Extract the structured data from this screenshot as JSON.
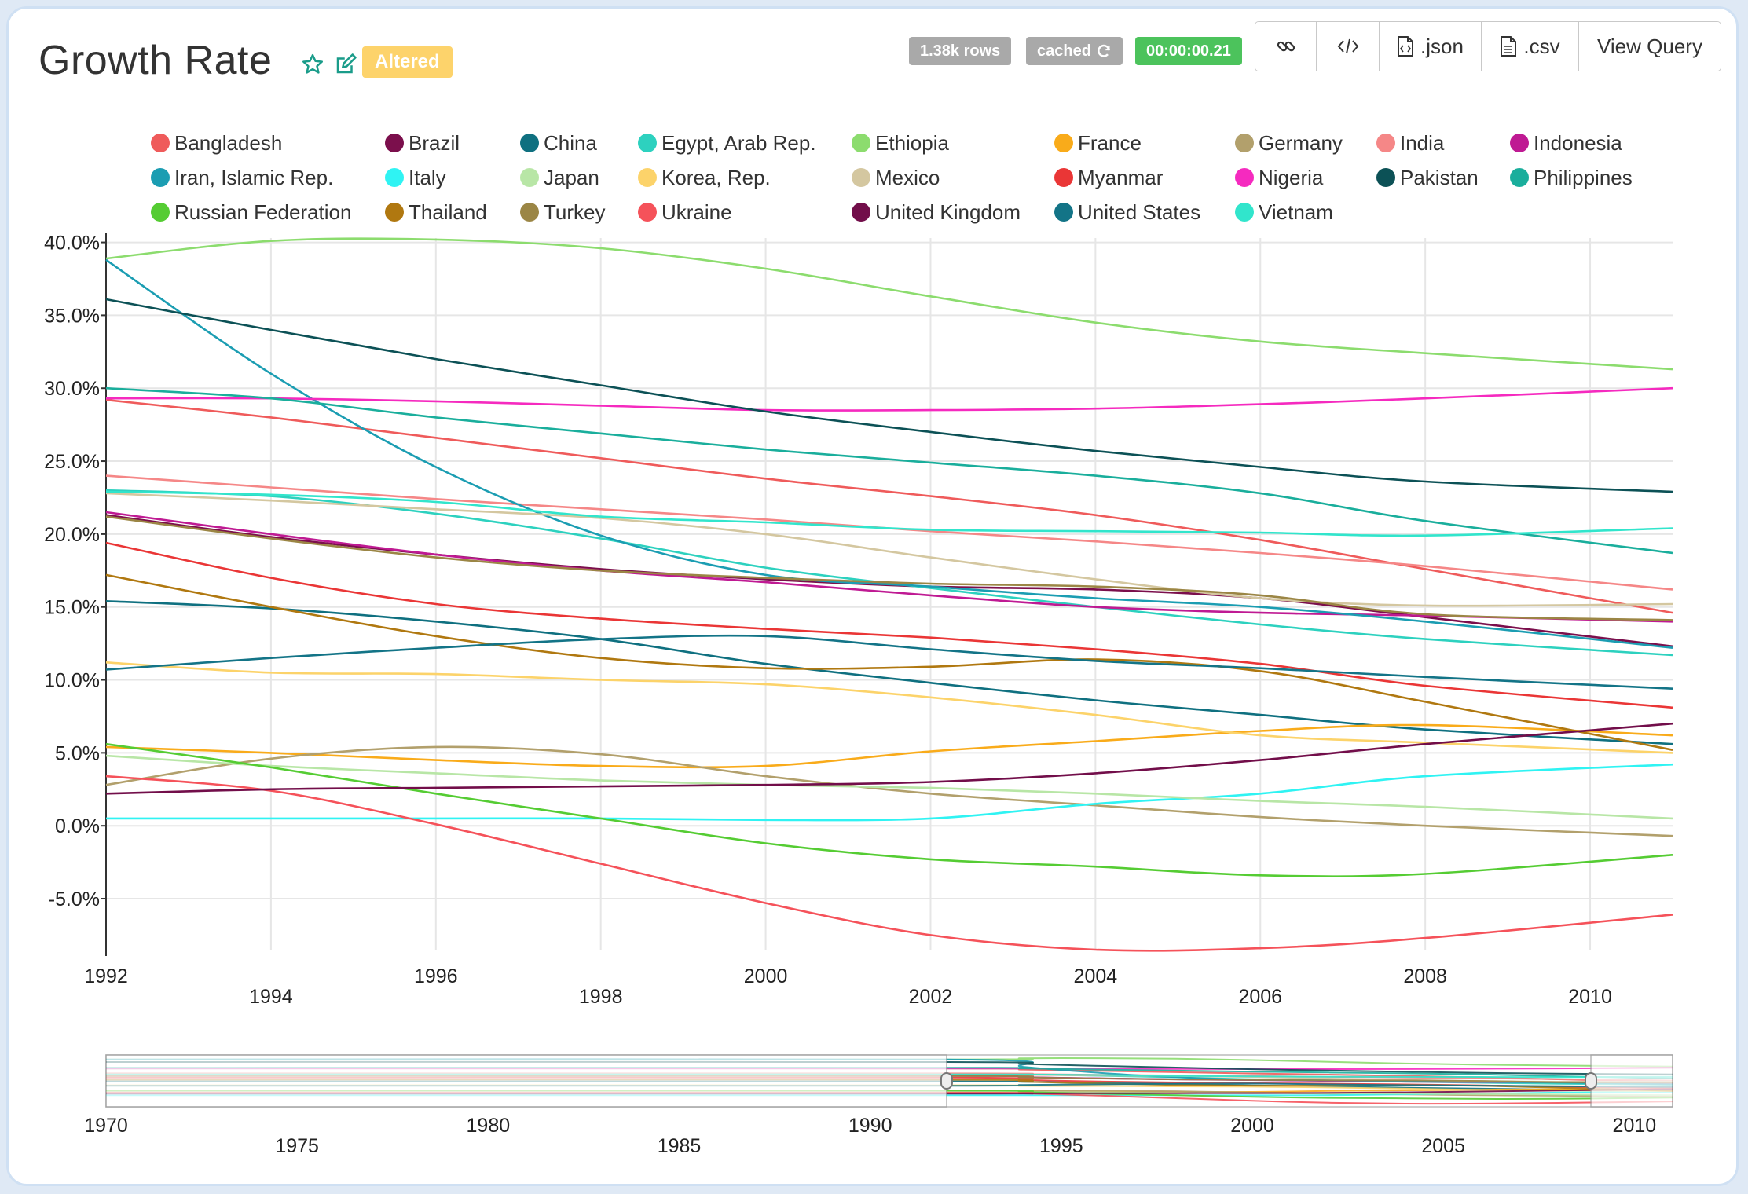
{
  "title": "Growth Rate",
  "altered_label": "Altered",
  "badges": {
    "rows": "1.38k rows",
    "cached": "cached",
    "time": "00:00:00.21"
  },
  "buttons": {
    "json": ".json",
    "csv": ".csv",
    "view_query": "View Query"
  },
  "icons": [
    "star-icon",
    "edit-icon",
    "refresh-icon",
    "link-icon",
    "code-icon",
    "file-code-icon",
    "file-text-icon"
  ],
  "colors": {
    "rows_badge": "#a9a9a9",
    "time_badge": "#4cc35c",
    "altered": "#fdd36b",
    "accent": "#1a9c8a"
  },
  "chart_data": {
    "type": "line",
    "title": "",
    "xlabel": "",
    "ylabel": "",
    "xlim": [
      1992,
      2011
    ],
    "ylim": [
      -8.5,
      40.3
    ],
    "yticks": [
      -5,
      0,
      5,
      10,
      15,
      20,
      25,
      30,
      35,
      40
    ],
    "ytick_labels": [
      "-5.0%",
      "0.0%",
      "5.0%",
      "10.0%",
      "15.0%",
      "20.0%",
      "25.0%",
      "30.0%",
      "35.0%",
      "40.0%"
    ],
    "xticks": [
      1992,
      1994,
      1996,
      1998,
      2000,
      2002,
      2004,
      2006,
      2008,
      2010
    ],
    "xtick_labels": [
      "1992",
      "1994",
      "1996",
      "1998",
      "2000",
      "2002",
      "2004",
      "2006",
      "2008",
      "2010"
    ],
    "grid": true,
    "legend_position": "top",
    "x": [
      1992,
      1994,
      1996,
      1998,
      2000,
      2002,
      2004,
      2006,
      2008,
      2011
    ],
    "series": [
      {
        "name": "Bangladesh",
        "color": "#ef5b5b",
        "values": [
          29.2,
          28.0,
          26.6,
          25.2,
          23.8,
          22.6,
          21.3,
          19.6,
          17.6,
          14.6
        ]
      },
      {
        "name": "Brazil",
        "color": "#7b0f4c",
        "values": [
          21.3,
          19.8,
          18.6,
          17.6,
          16.9,
          16.4,
          16.2,
          15.6,
          14.3,
          12.3
        ]
      },
      {
        "name": "China",
        "color": "#0f7080",
        "values": [
          15.4,
          14.9,
          14.0,
          12.8,
          11.1,
          9.8,
          8.6,
          7.6,
          6.6,
          5.6
        ]
      },
      {
        "name": "Egypt, Arab Rep.",
        "color": "#2dd1bf",
        "values": [
          23.0,
          22.6,
          21.4,
          19.7,
          17.7,
          16.3,
          15.0,
          13.8,
          12.8,
          11.7
        ]
      },
      {
        "name": "Ethiopia",
        "color": "#8cdc6e",
        "values": [
          38.9,
          40.1,
          40.2,
          39.6,
          38.2,
          36.3,
          34.5,
          33.2,
          32.4,
          31.3
        ]
      },
      {
        "name": "France",
        "color": "#f9ab1a",
        "values": [
          5.4,
          5.0,
          4.5,
          4.1,
          4.1,
          5.1,
          5.8,
          6.5,
          6.9,
          6.2
        ]
      },
      {
        "name": "Germany",
        "color": "#b2a06c",
        "values": [
          2.8,
          4.6,
          5.4,
          4.9,
          3.4,
          2.2,
          1.4,
          0.6,
          0.0,
          -0.7
        ]
      },
      {
        "name": "India",
        "color": "#f58787",
        "values": [
          24.0,
          23.2,
          22.4,
          21.7,
          21.0,
          20.2,
          19.5,
          18.7,
          17.8,
          16.2
        ]
      },
      {
        "name": "Indonesia",
        "color": "#bf1a93",
        "values": [
          21.5,
          20.0,
          18.6,
          17.5,
          16.7,
          15.8,
          15.0,
          14.6,
          14.4,
          14.0
        ]
      },
      {
        "name": "Iran, Islamic Rep.",
        "color": "#1b9db2",
        "values": [
          38.8,
          31.0,
          24.6,
          19.9,
          17.2,
          16.4,
          15.6,
          15.0,
          14.0,
          12.2
        ]
      },
      {
        "name": "Italy",
        "color": "#2ff3f3",
        "values": [
          0.5,
          0.5,
          0.5,
          0.5,
          0.4,
          0.5,
          1.5,
          2.2,
          3.4,
          4.2
        ]
      },
      {
        "name": "Japan",
        "color": "#b8e6a6",
        "values": [
          4.8,
          4.1,
          3.6,
          3.1,
          2.8,
          2.6,
          2.2,
          1.7,
          1.3,
          0.5
        ]
      },
      {
        "name": "Korea, Rep.",
        "color": "#fcd36a",
        "values": [
          11.2,
          10.5,
          10.4,
          10.0,
          9.7,
          8.8,
          7.6,
          6.2,
          5.7,
          5.0
        ]
      },
      {
        "name": "Mexico",
        "color": "#d4c7a0",
        "values": [
          22.8,
          22.3,
          21.7,
          21.1,
          20.0,
          18.4,
          16.9,
          15.6,
          15.1,
          15.2
        ]
      },
      {
        "name": "Myanmar",
        "color": "#ea3636",
        "values": [
          19.4,
          17.0,
          15.2,
          14.2,
          13.5,
          12.9,
          12.1,
          11.1,
          9.6,
          8.1
        ]
      },
      {
        "name": "Nigeria",
        "color": "#f52abf",
        "values": [
          29.3,
          29.3,
          29.1,
          28.8,
          28.5,
          28.5,
          28.6,
          28.9,
          29.3,
          30.0
        ]
      },
      {
        "name": "Pakistan",
        "color": "#0c5156",
        "values": [
          36.1,
          34.0,
          32.0,
          30.2,
          28.4,
          27.0,
          25.7,
          24.6,
          23.6,
          22.9
        ]
      },
      {
        "name": "Philippines",
        "color": "#1aae9c",
        "values": [
          30.0,
          29.3,
          28.0,
          26.9,
          25.8,
          24.9,
          24.0,
          22.8,
          20.9,
          18.7
        ]
      },
      {
        "name": "Russian Federation",
        "color": "#55cc33",
        "values": [
          5.6,
          4.0,
          2.2,
          0.5,
          -1.2,
          -2.3,
          -2.8,
          -3.4,
          -3.3,
          -2.0
        ]
      },
      {
        "name": "Thailand",
        "color": "#b07810",
        "values": [
          17.2,
          15.0,
          13.0,
          11.5,
          10.8,
          10.9,
          11.4,
          10.6,
          8.5,
          5.2
        ]
      },
      {
        "name": "Turkey",
        "color": "#9b8645",
        "values": [
          21.2,
          19.7,
          18.4,
          17.5,
          17.0,
          16.6,
          16.4,
          15.8,
          14.5,
          14.1
        ]
      },
      {
        "name": "Ukraine",
        "color": "#f5525a",
        "values": [
          3.4,
          2.4,
          0.1,
          -2.6,
          -5.3,
          -7.5,
          -8.5,
          -8.4,
          -7.7,
          -6.1
        ]
      },
      {
        "name": "United Kingdom",
        "color": "#720e4a",
        "values": [
          2.2,
          2.5,
          2.6,
          2.7,
          2.8,
          3.0,
          3.6,
          4.5,
          5.6,
          7.0
        ]
      },
      {
        "name": "United States",
        "color": "#137487",
        "values": [
          10.7,
          11.5,
          12.2,
          12.8,
          13.0,
          12.1,
          11.3,
          10.8,
          10.2,
          9.4
        ]
      },
      {
        "name": "Vietnam",
        "color": "#31e5cc",
        "values": [
          22.9,
          22.7,
          22.2,
          21.2,
          20.8,
          20.3,
          20.2,
          20.1,
          19.9,
          20.4
        ]
      }
    ],
    "brush": {
      "xlim": [
        1970,
        2011
      ],
      "selection": [
        1992,
        2011
      ],
      "xticks": [
        1970,
        1975,
        1980,
        1985,
        1990,
        1995,
        2000,
        2005,
        2010
      ],
      "xtick_labels": [
        "1970",
        "1975",
        "1980",
        "1985",
        "1990",
        "1995",
        "2000",
        "2005",
        "2010"
      ]
    }
  }
}
